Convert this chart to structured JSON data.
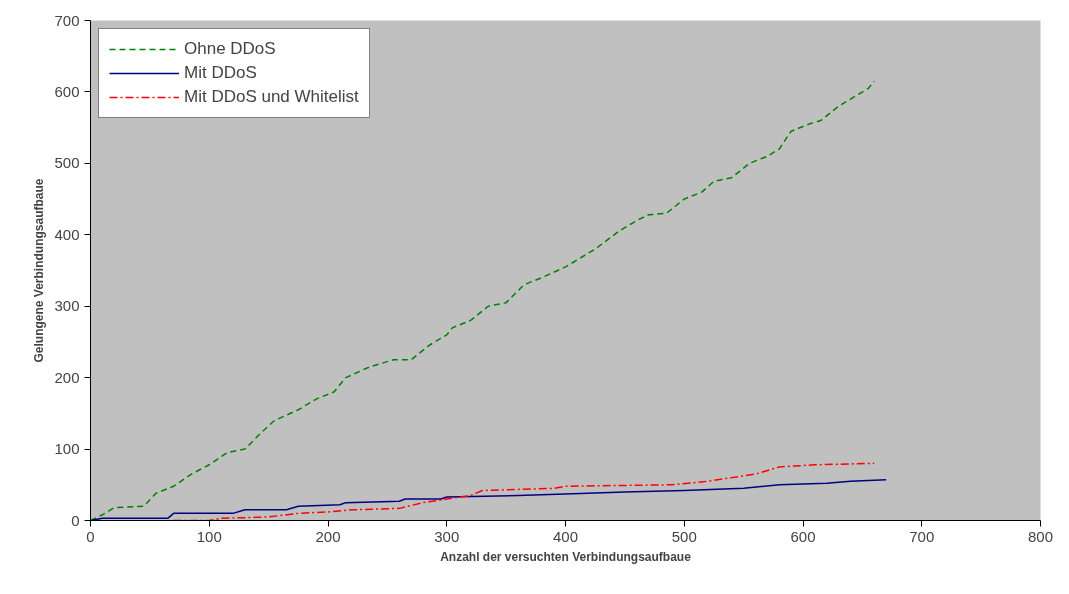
{
  "chart_data": {
    "type": "line",
    "xlabel": "Anzahl der versuchten Verbindungsaufbaue",
    "ylabel": "Gelungene Verbindungsaufbaue",
    "xlim": [
      0,
      800
    ],
    "ylim": [
      0,
      700
    ],
    "xticks": [
      0,
      100,
      200,
      300,
      400,
      500,
      600,
      700,
      800
    ],
    "yticks": [
      0,
      100,
      200,
      300,
      400,
      500,
      600,
      700
    ],
    "grid": false,
    "legend": "top left",
    "marker": "none",
    "series": [
      {
        "name": "Ohne DDoS",
        "color": "#008000",
        "line_style": "dashed",
        "x": [
          0,
          10,
          20,
          45,
          55,
          70,
          85,
          100,
          115,
          130,
          145,
          155,
          175,
          190,
          205,
          215,
          235,
          255,
          270,
          285,
          300,
          305,
          320,
          335,
          350,
          365,
          380,
          400,
          410,
          425,
          445,
          460,
          470,
          485,
          500,
          515,
          525,
          540,
          555,
          570,
          580,
          590,
          605,
          615,
          630,
          645,
          655,
          660
        ],
        "values": [
          0,
          8,
          18,
          20,
          38,
          48,
          65,
          78,
          95,
          100,
          125,
          140,
          155,
          170,
          180,
          200,
          215,
          225,
          225,
          245,
          260,
          270,
          280,
          300,
          305,
          330,
          340,
          355,
          365,
          380,
          405,
          420,
          428,
          430,
          450,
          460,
          475,
          480,
          500,
          510,
          520,
          545,
          555,
          560,
          580,
          595,
          605,
          615
        ]
      },
      {
        "name": "Mit DDoS",
        "color": "#000080",
        "line_style": "solid",
        "x": [
          0,
          10,
          65,
          70,
          120,
          130,
          165,
          175,
          210,
          215,
          260,
          265,
          295,
          300,
          360,
          400,
          450,
          500,
          550,
          580,
          620,
          640,
          670
        ],
        "values": [
          0,
          3,
          3,
          10,
          10,
          15,
          15,
          20,
          22,
          25,
          27,
          30,
          30,
          33,
          35,
          37,
          40,
          42,
          45,
          50,
          52,
          55,
          57
        ]
      },
      {
        "name": "Mit DDoS und Whitelist",
        "color": "#ff0000",
        "line_style": "dashdot",
        "x": [
          70,
          100,
          110,
          150,
          175,
          200,
          220,
          260,
          280,
          300,
          320,
          330,
          390,
          400,
          490,
          520,
          560,
          580,
          610,
          660
        ],
        "values": [
          0,
          0,
          3,
          5,
          10,
          12,
          15,
          17,
          25,
          30,
          35,
          42,
          45,
          48,
          50,
          55,
          65,
          75,
          78,
          80
        ]
      }
    ]
  }
}
